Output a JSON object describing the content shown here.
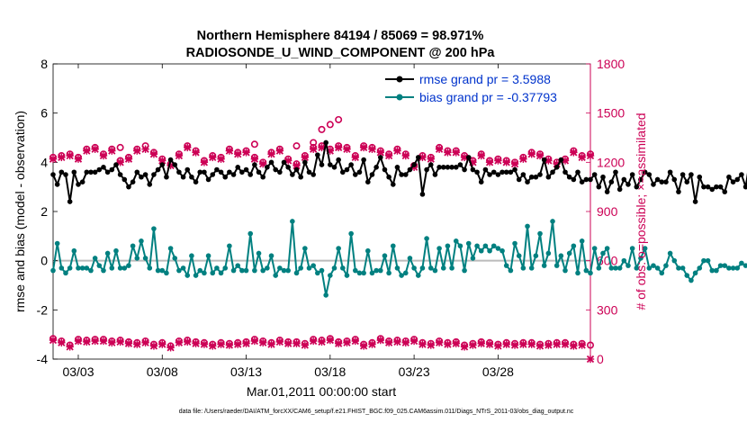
{
  "chart_data": {
    "type": "line",
    "title_line1": "Northern Hemisphere 84194 / 85069 = 98.971%",
    "title_line2": "RADIOSONDE_U_WIND_COMPONENT @ 200 hPa",
    "xlabel": "Mar.01,2011 00:00:00 start",
    "ylabel_left": "rmse and bias (model - observation)",
    "ylabel_right": "# of obs: o=possible; ×=assimilated",
    "footnote": "data file: /Users/raeder/DAI/ATM_forcXX/CAM6_setup/f.e21.FHIST_BGC.f09_025.CAM6assim.011/Diags_NTrS_2011-03/obs_diag_output.nc",
    "x_range": [
      1.5,
      33.5
    ],
    "x_ticks": [
      3,
      8,
      13,
      18,
      23,
      28
    ],
    "x_tick_labels": [
      "03/03",
      "03/08",
      "03/13",
      "03/18",
      "03/23",
      "03/28"
    ],
    "ylim_left": [
      -4,
      8
    ],
    "y_ticks_left": [
      -4,
      -2,
      0,
      2,
      4,
      6,
      8
    ],
    "y_tick_labels_left": [
      "-4",
      "-2",
      "0",
      "2",
      "4",
      "6",
      "8"
    ],
    "ylim_right": [
      0,
      1800
    ],
    "y_ticks_right": [
      0,
      300,
      600,
      900,
      1200,
      1500,
      1800
    ],
    "y_tick_labels_right": [
      "0",
      "300",
      "600",
      "900",
      "1200",
      "1500",
      "1800"
    ],
    "legend": [
      {
        "name": "rmse grand pr = 3.5988",
        "color": "#000000"
      },
      {
        "name": "bias grand pr = -0.37793",
        "color": "#008080"
      }
    ],
    "colors": {
      "rmse": "#000000",
      "bias": "#008080",
      "obs": "#cc0055",
      "zero_line": "#bbbbbb",
      "right_axis": "#cc0055"
    },
    "series": [
      {
        "name": "rmse",
        "x_start": 1.5,
        "x_step": 0.25,
        "values": [
          3.5,
          3.1,
          3.6,
          3.5,
          2.4,
          3.6,
          3.1,
          3.2,
          3.6,
          3.6,
          3.6,
          3.7,
          3.8,
          3.6,
          3.7,
          3.9,
          3.5,
          3.3,
          3.0,
          3.2,
          3.6,
          3.4,
          3.5,
          3.1,
          3.5,
          3.7,
          3.9,
          3.4,
          4.1,
          3.9,
          3.6,
          3.4,
          3.7,
          3.4,
          3.2,
          3.6,
          3.6,
          3.3,
          3.5,
          3.7,
          3.6,
          3.4,
          3.6,
          3.5,
          3.8,
          3.6,
          3.7,
          3.5,
          3.9,
          3.6,
          3.4,
          3.8,
          4.0,
          3.7,
          3.6,
          4.0,
          3.8,
          3.5,
          3.7,
          3.4,
          4.0,
          3.6,
          3.5,
          4.3,
          3.9,
          4.8,
          3.9,
          3.8,
          4.1,
          3.6,
          3.7,
          3.9,
          3.5,
          3.6,
          4.1,
          3.2,
          3.5,
          3.8,
          4.2,
          3.7,
          3.4,
          3.1,
          3.8,
          3.5,
          3.5,
          3.7,
          3.9,
          4.2,
          2.7,
          3.7,
          3.9,
          3.5,
          3.8,
          3.8,
          3.8,
          3.8,
          3.8,
          3.9,
          3.7,
          4.2,
          3.7,
          3.6,
          3.2,
          3.7,
          3.5,
          3.6,
          3.5,
          3.6,
          3.6,
          3.6,
          3.7,
          3.3,
          3.5,
          3.2,
          3.4,
          3.4,
          3.5,
          4.1,
          3.4,
          3.6,
          3.8,
          4.1,
          3.6,
          3.4,
          3.3,
          3.6,
          3.2,
          3.3,
          3.3,
          3.5,
          3.0,
          3.4,
          2.8,
          3.2,
          3.6,
          2.9,
          3.3,
          3.1,
          3.5,
          3.0,
          3.3,
          3.6,
          3.5,
          3.1,
          3.3,
          3.2,
          3.2,
          3.6,
          3.3,
          2.8,
          3.5,
          3.2,
          3.5,
          2.4,
          3.4,
          3.0,
          3.0,
          2.9,
          3.0,
          3.0,
          2.8,
          3.4,
          3.2,
          3.3,
          3.5,
          3.0,
          4.1,
          3.1,
          4.0
        ]
      },
      {
        "name": "bias",
        "x_start": 1.5,
        "x_step": 0.25,
        "values": [
          -0.4,
          0.7,
          -0.3,
          -0.5,
          -0.3,
          0.4,
          -0.3,
          -0.3,
          -0.3,
          -0.4,
          0.1,
          -0.2,
          -0.4,
          0.3,
          -0.3,
          0.4,
          -0.3,
          -0.3,
          -0.2,
          0.6,
          0.1,
          0.8,
          0.1,
          -0.3,
          1.3,
          -0.4,
          -0.4,
          -0.5,
          0.5,
          0.1,
          -0.4,
          -0.3,
          -0.6,
          0.2,
          -0.6,
          -0.4,
          -0.5,
          0.2,
          -0.5,
          -0.3,
          -0.5,
          -0.3,
          0.6,
          -0.4,
          -0.2,
          -0.4,
          -0.4,
          1.1,
          -0.4,
          0.3,
          -0.4,
          -0.3,
          0.2,
          -0.6,
          -0.3,
          -0.4,
          -0.4,
          1.6,
          -0.5,
          -0.3,
          0.5,
          -0.3,
          -0.2,
          -0.5,
          -0.4,
          -1.4,
          -0.6,
          -0.3,
          0.5,
          -0.3,
          -0.6,
          1.1,
          -0.4,
          -0.5,
          -0.5,
          0.4,
          -0.5,
          -0.4,
          -0.4,
          0.2,
          -0.5,
          0.6,
          -0.3,
          -0.6,
          -0.5,
          0.1,
          -0.3,
          -0.6,
          -0.3,
          0.9,
          -0.3,
          -0.4,
          0.5,
          -0.3,
          0.6,
          -0.3,
          0.8,
          0.6,
          -0.4,
          0.7,
          0.1,
          0.6,
          0.4,
          0.6,
          0.4,
          0.6,
          0.5,
          0.4,
          -0.2,
          -0.4,
          0.7,
          0.2,
          -0.3,
          1.4,
          -0.3,
          0.2,
          1.1,
          -0.2,
          0.3,
          1.6,
          -0.2,
          0.2,
          -0.4,
          0.3,
          0.6,
          -0.5,
          0.8,
          -0.4,
          -0.5,
          0.5,
          -0.3,
          0.3,
          0.5,
          -0.3,
          -0.3,
          -0.3,
          0.0,
          -0.2,
          0.5,
          -0.3,
          0.1,
          0.5,
          -0.3,
          -0.2,
          -0.3,
          -0.5,
          -0.2,
          0.3,
          0.0,
          -0.3,
          -0.3,
          -0.6,
          -0.8,
          -0.5,
          -0.3,
          0.0,
          0.0,
          -0.4,
          -0.4,
          -0.2,
          -0.2,
          -0.3,
          -0.3,
          -0.3,
          -0.1,
          -0.2,
          -0.2,
          -0.5,
          -0.3,
          0.2,
          -0.1
        ]
      },
      {
        "name": "obs possible",
        "axis": "right",
        "x_start": 1.5,
        "x_step": 0.5,
        "values": [
          1230,
          1240,
          1250,
          1230,
          1280,
          1290,
          1250,
          1280,
          1210,
          1230,
          1280,
          1300,
          1260,
          1220,
          1190,
          1250,
          1300,
          1270,
          1210,
          1240,
          1230,
          1280,
          1260,
          1270,
          1230,
          1200,
          1260,
          1280,
          1220,
          1190,
          1240,
          1290,
          1300,
          1280,
          1300,
          1290,
          1240,
          1300,
          1290,
          1270,
          1250,
          1280,
          1250,
          1180,
          1240,
          1230,
          1290,
          1270,
          1270,
          1240,
          1210,
          1250,
          1210,
          1220,
          1210,
          1200,
          1230,
          1260,
          1250,
          1220,
          1200,
          1220,
          1270,
          1240,
          1250
        ]
      },
      {
        "name": "obs assimilated",
        "axis": "right",
        "x_start": 1.5,
        "x_step": 0.5,
        "values": [
          1220,
          1230,
          1240,
          1220,
          1270,
          1280,
          1240,
          1270,
          1200,
          1220,
          1270,
          1280,
          1250,
          1210,
          1180,
          1240,
          1290,
          1260,
          1200,
          1230,
          1220,
          1270,
          1250,
          1260,
          1220,
          1190,
          1250,
          1270,
          1210,
          1180,
          1230,
          1280,
          1290,
          1270,
          1290,
          1280,
          1230,
          1290,
          1280,
          1260,
          1240,
          1270,
          1240,
          1170,
          1230,
          1220,
          1280,
          1260,
          1260,
          1230,
          1200,
          1240,
          1200,
          1210,
          1200,
          1190,
          1220,
          1250,
          1240,
          1210,
          1190,
          1210,
          1260,
          1230,
          1240
        ]
      },
      {
        "name": "obs possible",
        "axis": "right",
        "x_start": 1.5,
        "x_step": 0.5,
        "values": [
          125,
          110,
          85,
          120,
          115,
          120,
          120,
          110,
          115,
          105,
          100,
          110,
          90,
          100,
          80,
          110,
          115,
          105,
          100,
          90,
          100,
          95,
          100,
          105,
          120,
          110,
          100,
          115,
          105,
          105,
          95,
          120,
          115,
          125,
          105,
          110,
          120,
          90,
          100,
          125,
          110,
          115,
          110,
          120,
          100,
          95,
          110,
          100,
          105,
          85,
          95,
          105,
          100,
          90,
          100,
          95,
          100,
          100,
          90,
          95,
          100,
          100,
          90,
          95,
          85
        ]
      },
      {
        "name": "obs assimilated",
        "axis": "right",
        "x_start": 1.5,
        "x_step": 0.5,
        "values": [
          115,
          100,
          75,
          110,
          105,
          110,
          110,
          100,
          105,
          95,
          90,
          100,
          80,
          90,
          70,
          100,
          105,
          95,
          90,
          80,
          90,
          85,
          90,
          95,
          110,
          100,
          90,
          105,
          95,
          95,
          85,
          110,
          105,
          115,
          95,
          100,
          110,
          80,
          90,
          115,
          100,
          105,
          100,
          110,
          90,
          85,
          100,
          90,
          95,
          75,
          85,
          95,
          90,
          80,
          90,
          85,
          90,
          90,
          80,
          85,
          90,
          90,
          80,
          85,
          0
        ]
      }
    ],
    "obs_top_possible_extra": [
      {
        "x": 5.5,
        "y": 1290
      },
      {
        "x": 13.5,
        "y": 1310
      },
      {
        "x": 16.0,
        "y": 1300
      },
      {
        "x": 17.0,
        "y": 1320
      },
      {
        "x": 18.5,
        "y": 1460
      },
      {
        "x": 18.0,
        "y": 1430
      },
      {
        "x": 17.5,
        "y": 1400
      }
    ]
  }
}
